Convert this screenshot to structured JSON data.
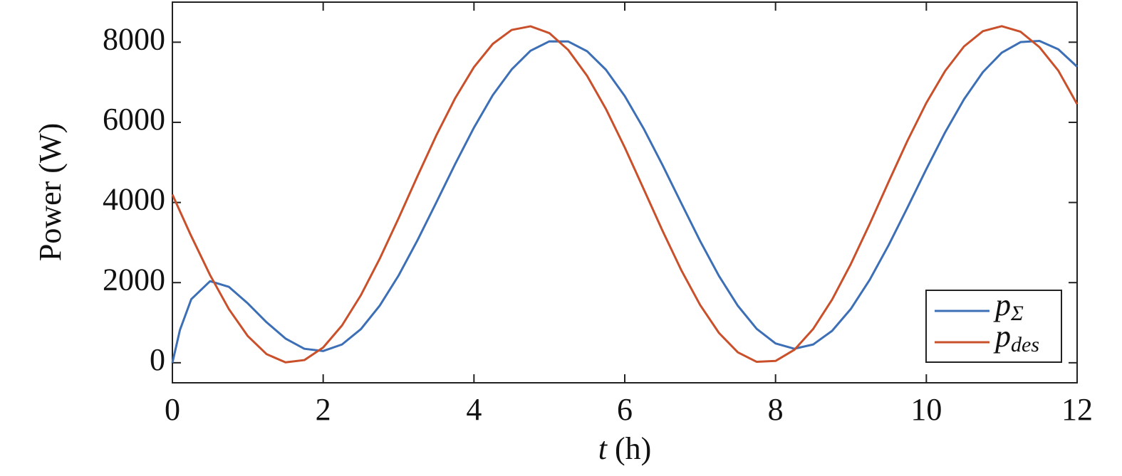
{
  "chart_data": {
    "type": "line",
    "xlabel": "t (h)",
    "ylabel": "Power (W)",
    "x": [
      0,
      0.1,
      0.25,
      0.5,
      0.75,
      1,
      1.25,
      1.5,
      1.75,
      2,
      2.25,
      2.5,
      2.75,
      3,
      3.25,
      3.5,
      3.75,
      4,
      4.25,
      4.5,
      4.75,
      5,
      5.25,
      5.5,
      5.75,
      6,
      6.25,
      6.5,
      6.75,
      7,
      7.25,
      7.5,
      7.75,
      8,
      8.25,
      8.5,
      8.75,
      9,
      9.25,
      9.5,
      9.75,
      10,
      10.25,
      10.5,
      10.75,
      11,
      11.25,
      11.5,
      11.75,
      12
    ],
    "series": [
      {
        "name": "pΣ",
        "color": "#3c6fb5",
        "values": [
          0,
          818,
          1585,
          2036,
          1893,
          1482,
          1009,
          605,
          349,
          293,
          457,
          839,
          1425,
          2177,
          3054,
          3999,
          4958,
          5869,
          6680,
          7320,
          7787,
          8022,
          8018,
          7775,
          7313,
          6656,
          5846,
          4936,
          3981,
          3037,
          2165,
          1422,
          847,
          482,
          350,
          457,
          796,
          1347,
          2074,
          2935,
          3874,
          4833,
          5753,
          6576,
          7253,
          7738,
          8003,
          8033,
          7824,
          7388
        ]
      },
      {
        "name": "pdes",
        "color": "#c9502a",
        "values": [
          4200,
          3781,
          3161,
          2187,
          1337,
          666,
          214,
          11,
          67,
          381,
          932,
          1686,
          2597,
          3607,
          4654,
          5673,
          6601,
          7379,
          7959,
          8306,
          8397,
          8227,
          7807,
          7163,
          6335,
          5373,
          4339,
          3297,
          2310,
          1441,
          743,
          260,
          23,
          45,
          324,
          846,
          1576,
          2469,
          3468,
          4516,
          5542,
          6485,
          7284,
          7895,
          8276,
          8400,
          8261,
          7877,
          7292,
          6454
        ]
      }
    ],
    "xlim": [
      0,
      12
    ],
    "xticks": [
      0,
      2,
      4,
      6,
      8,
      10,
      12
    ],
    "ylim": [
      -500,
      9000
    ],
    "yticks": [
      0,
      2000,
      4000,
      6000,
      8000
    ],
    "grid": false,
    "legend": "lower right"
  }
}
